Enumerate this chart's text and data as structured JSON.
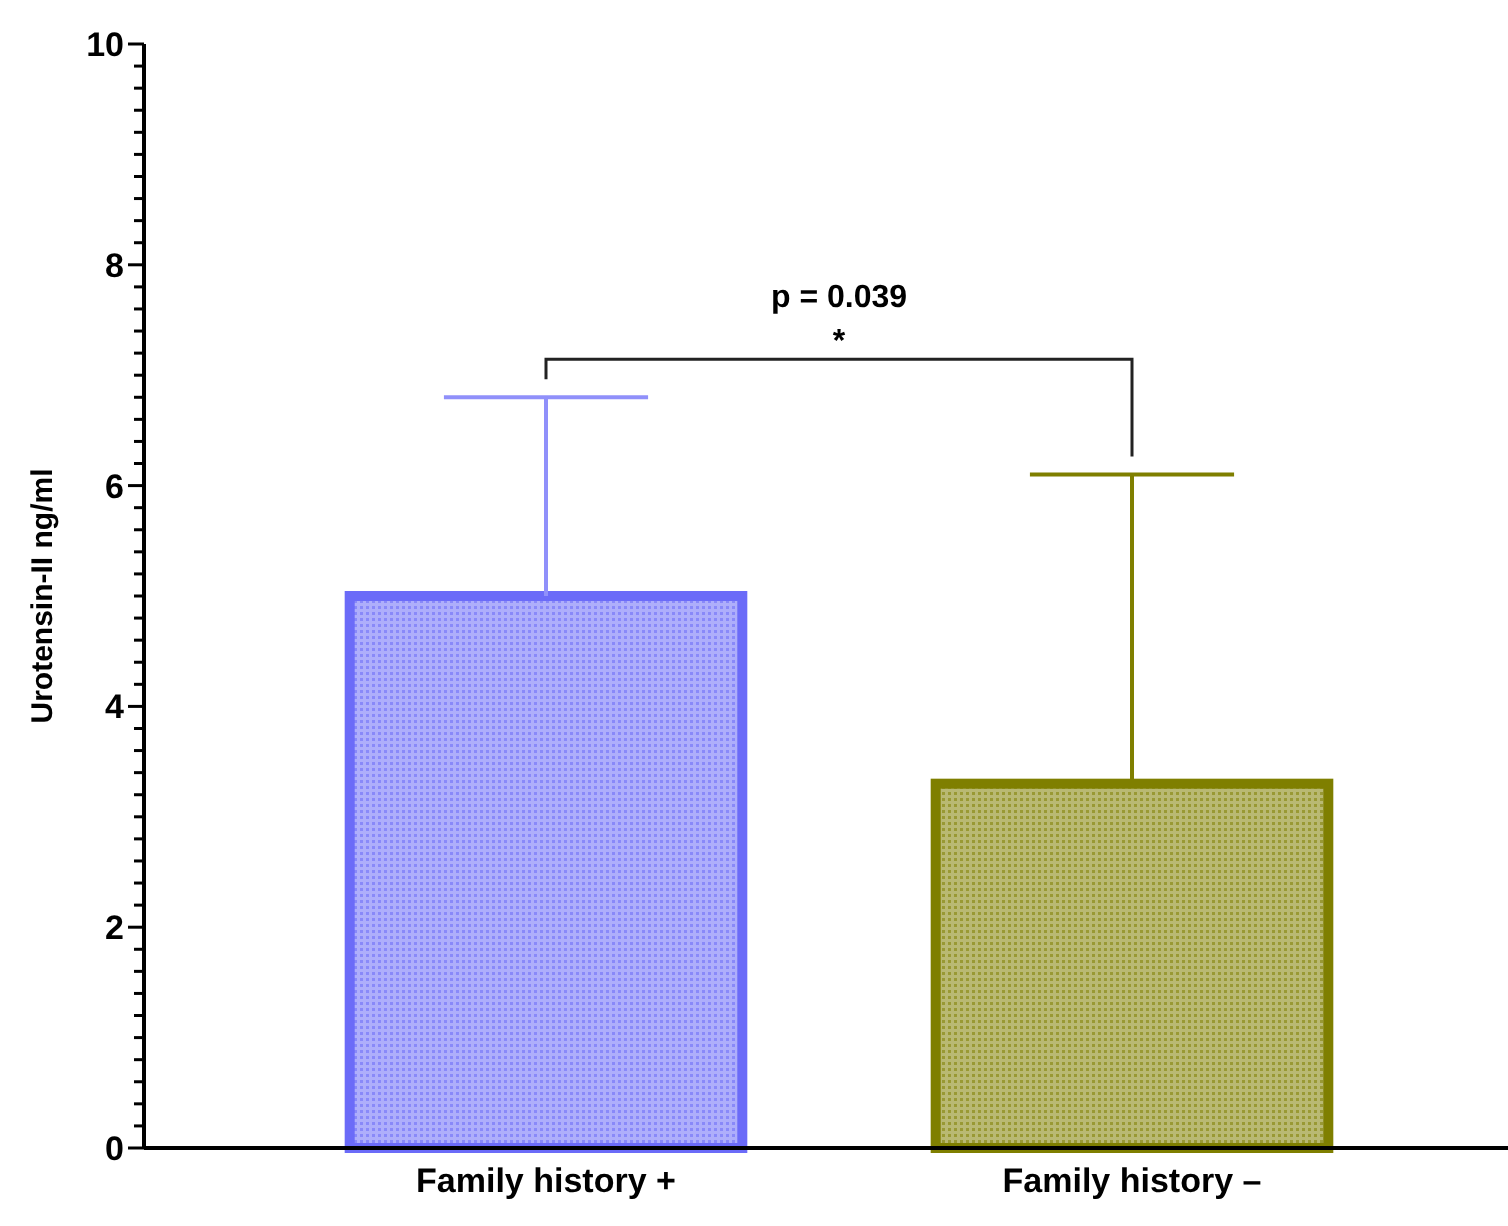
{
  "chart_data": {
    "type": "bar",
    "ylabel": "Urotensin-II ng/ml",
    "categories": [
      "Family history +",
      "Family history –"
    ],
    "values": [
      5.0,
      3.3
    ],
    "colors": [
      "#6b6bf8",
      "#7f7f00"
    ],
    "errors": [
      [
        5.0,
        6.8
      ],
      [
        3.3,
        6.1
      ]
    ],
    "ylim": [
      0,
      10
    ],
    "yticks": [
      0,
      {
        "value": 0.2,
        "label": null
      },
      {
        "value": 0.4,
        "label": null
      },
      {
        "value": 0.6,
        "label": null
      },
      {
        "value": 0.8,
        "label": null
      },
      {
        "value": 1,
        "label": null
      },
      {
        "value": 1.2,
        "label": null
      },
      {
        "value": 1.4,
        "label": null
      },
      {
        "value": 1.6,
        "label": null
      },
      {
        "value": 1.8,
        "label": null
      },
      2,
      {
        "value": 2.2,
        "label": null
      },
      {
        "value": 2.4,
        "label": null
      },
      {
        "value": 2.6,
        "label": null
      },
      {
        "value": 2.8,
        "label": null
      },
      {
        "value": 3,
        "label": null
      },
      {
        "value": 3.2,
        "label": null
      },
      {
        "value": 3.4,
        "label": null
      },
      {
        "value": 3.6,
        "label": null
      },
      {
        "value": 3.8,
        "label": null
      },
      4,
      {
        "value": 4.2,
        "label": null
      },
      {
        "value": 4.4,
        "label": null
      },
      {
        "value": 4.6,
        "label": null
      },
      {
        "value": 4.8,
        "label": null
      },
      {
        "value": 5,
        "label": null
      },
      {
        "value": 5.2,
        "label": null
      },
      {
        "value": 5.4,
        "label": null
      },
      {
        "value": 5.6,
        "label": null
      },
      {
        "value": 5.8,
        "label": null
      },
      6,
      {
        "value": 6.2,
        "label": null
      },
      {
        "value": 6.4,
        "label": null
      },
      {
        "value": 6.6,
        "label": null
      },
      {
        "value": 6.8,
        "label": null
      },
      {
        "value": 7,
        "label": null
      },
      {
        "value": 7.2,
        "label": null
      },
      {
        "value": 7.4,
        "label": null
      },
      {
        "value": 7.6,
        "label": null
      },
      {
        "value": 7.8,
        "label": null
      },
      8,
      {
        "value": 8.2,
        "label": null
      },
      {
        "value": 8.4,
        "label": null
      },
      {
        "value": 8.6,
        "label": null
      },
      {
        "value": 8.8,
        "label": null
      },
      {
        "value": 9,
        "label": null
      },
      {
        "value": 9.2,
        "label": null
      },
      {
        "value": 9.4,
        "label": null
      },
      {
        "value": 9.6,
        "label": null
      },
      {
        "value": 9.8,
        "label": null
      },
      10
    ],
    "annotations": [
      "p = 0.039",
      "*"
    ],
    "grid": false
  }
}
